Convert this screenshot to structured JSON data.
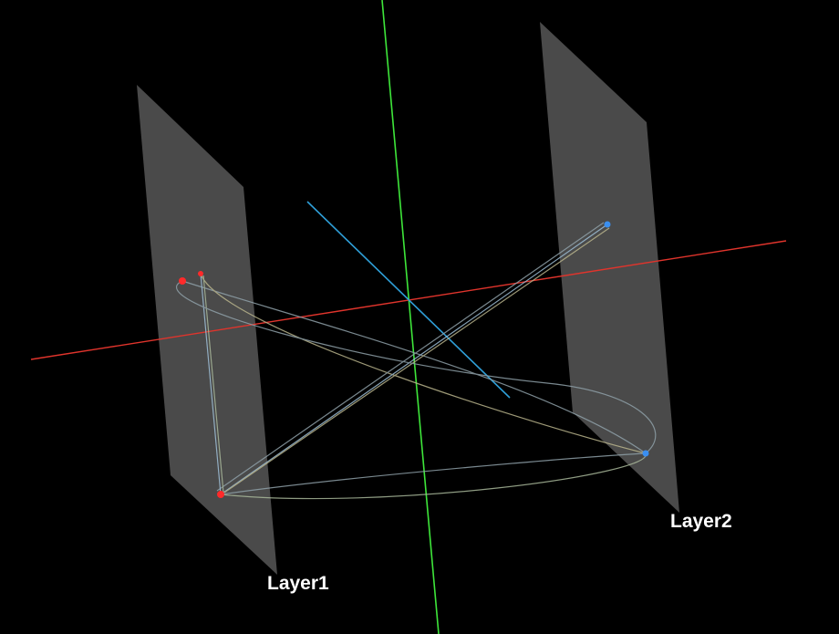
{
  "scene": {
    "background": "#000000",
    "plane_color": "#4a4a4a",
    "axes": {
      "x_color": "#e0342c",
      "y_color": "#3ee63a",
      "z_color": "#2f9fd8"
    },
    "layers": [
      {
        "label": "Layer1",
        "node_color": "#ff2a2a"
      },
      {
        "label": "Layer2",
        "node_color": "#3a8ff0"
      }
    ],
    "edge_colors": [
      "#8fa0a8",
      "#b9b48c",
      "#9fc0d8",
      "#a8b89a"
    ]
  }
}
